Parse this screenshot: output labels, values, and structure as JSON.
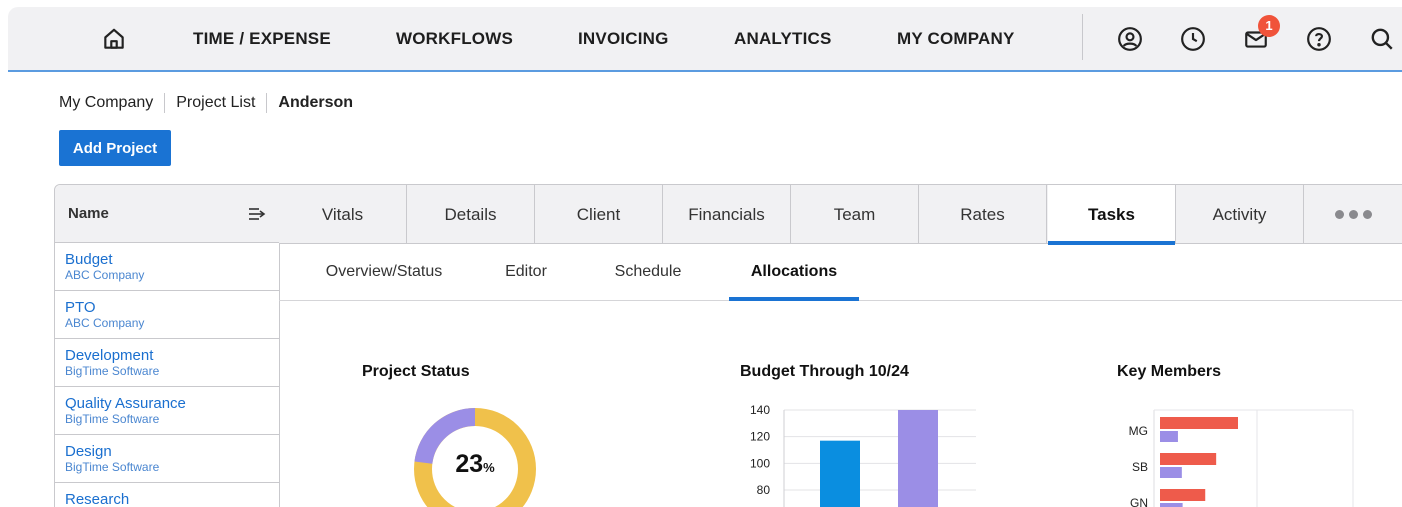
{
  "nav": {
    "items": [
      "TIME / EXPENSE",
      "WORKFLOWS",
      "INVOICING",
      "ANALYTICS",
      "MY COMPANY"
    ],
    "icons": [
      "home-icon",
      "account-icon",
      "clock-icon",
      "mail-icon",
      "help-icon",
      "search-icon"
    ],
    "mail_badge": "1"
  },
  "breadcrumb": {
    "items": [
      "My Company",
      "Project List"
    ],
    "current": "Anderson"
  },
  "add_project_label": "Add Project",
  "project_list": {
    "header": "Name",
    "items": [
      {
        "name": "Budget",
        "company": "ABC Company"
      },
      {
        "name": "PTO",
        "company": "ABC Company"
      },
      {
        "name": "Development",
        "company": "BigTime Software"
      },
      {
        "name": "Quality Assurance",
        "company": "BigTime Software"
      },
      {
        "name": "Design",
        "company": "BigTime Software"
      },
      {
        "name": "Research",
        "company": ""
      }
    ]
  },
  "tabs": {
    "items": [
      "Vitals",
      "Details",
      "Client",
      "Financials",
      "Team",
      "Rates",
      "Tasks",
      "Activity"
    ],
    "active": "Tasks"
  },
  "subtabs": {
    "items": [
      "Overview/Status",
      "Editor",
      "Schedule",
      "Allocations"
    ],
    "active": "Allocations"
  },
  "widgets": {
    "project_status": {
      "title": "Project Status",
      "percent_value": "23",
      "percent_sign": "%"
    },
    "budget": {
      "title": "Budget Through 10/24"
    },
    "members": {
      "title": "Key Members"
    }
  },
  "colors": {
    "accent": "#1a73d3",
    "donut_complete": "#9b8ee6",
    "donut_remaining": "#f0c14b",
    "bar_blue": "#0a8ee0",
    "bar_purple": "#9b8ee6",
    "bar_red": "#ee5b4b"
  },
  "chart_data": [
    {
      "type": "pie",
      "title": "Project Status",
      "values": [
        23,
        77
      ]
    },
    {
      "type": "bar",
      "title": "Budget Through 10/24",
      "yticks": [
        140,
        120,
        100,
        80
      ],
      "series": [
        {
          "values": [
            117
          ]
        },
        {
          "values": [
            140
          ]
        }
      ]
    },
    {
      "type": "bar",
      "orientation": "horizontal",
      "title": "Key Members",
      "categories": [
        "MG",
        "SB",
        "GN"
      ],
      "series": [
        {
          "values": [
            100,
            72,
            58
          ]
        },
        {
          "values": [
            23,
            28,
            29
          ]
        }
      ]
    }
  ]
}
